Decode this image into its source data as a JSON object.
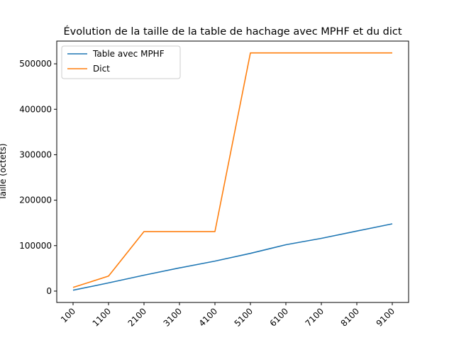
{
  "chart_data": {
    "type": "line",
    "title": "Évolution de la taille de la table de hachage avec MPHF et du dict",
    "xlabel": "",
    "ylabel": "Taille (octets)",
    "categories": [
      "100",
      "1100",
      "2100",
      "3100",
      "4100",
      "5100",
      "6100",
      "7100",
      "8100",
      "9100"
    ],
    "series": [
      {
        "name": "Table avec MPHF",
        "color": "#1f77b4",
        "values": [
          2000,
          18000,
          35000,
          51000,
          66000,
          83000,
          102000,
          116000,
          132000,
          148000
        ]
      },
      {
        "name": "Dict",
        "color": "#ff7f0e",
        "values": [
          8000,
          33000,
          131000,
          131000,
          131000,
          524000,
          524000,
          524000,
          524000,
          524000
        ]
      }
    ],
    "ylim": [
      -25000,
      550000
    ],
    "yticks": [
      0,
      100000,
      200000,
      300000,
      400000,
      500000
    ],
    "legend_position": "top-left",
    "grid": false
  }
}
